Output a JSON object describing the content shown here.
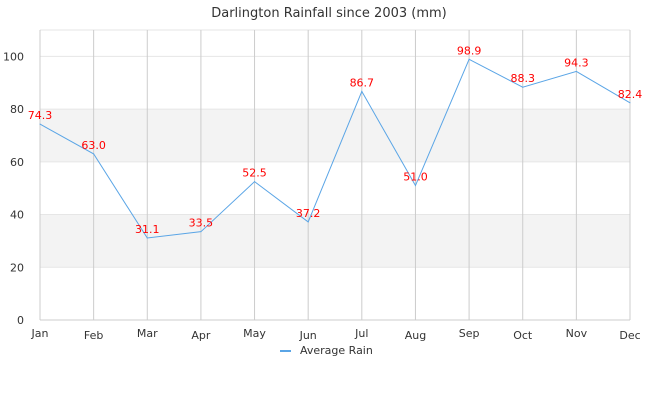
{
  "chart_data": {
    "type": "line",
    "title": "Darlington Rainfall since 2003 (mm)",
    "xlabel": "",
    "ylabel": "",
    "categories": [
      "Jan",
      "Feb",
      "Mar",
      "Apr",
      "May",
      "Jun",
      "Jul",
      "Aug",
      "Sep",
      "Oct",
      "Nov",
      "Dec"
    ],
    "series": [
      {
        "name": "Average Rain",
        "values": [
          74.3,
          63.0,
          31.1,
          33.5,
          52.5,
          37.2,
          86.7,
          51.0,
          98.9,
          88.3,
          94.3,
          82.4
        ],
        "color": "#5aa5e6"
      }
    ],
    "data_labels": [
      "74.3",
      "63.0",
      "31.1",
      "33.5",
      "52.5",
      "37.2",
      "86.7",
      "51.0",
      "98.9",
      "88.3",
      "94.3",
      "82.4"
    ],
    "data_label_color": "#ff0000",
    "ylim": [
      0,
      110
    ],
    "yticks": [
      0,
      20,
      40,
      60,
      80,
      100
    ],
    "grid": true,
    "band_color": "#f3f3f3",
    "legend": "bottom"
  }
}
